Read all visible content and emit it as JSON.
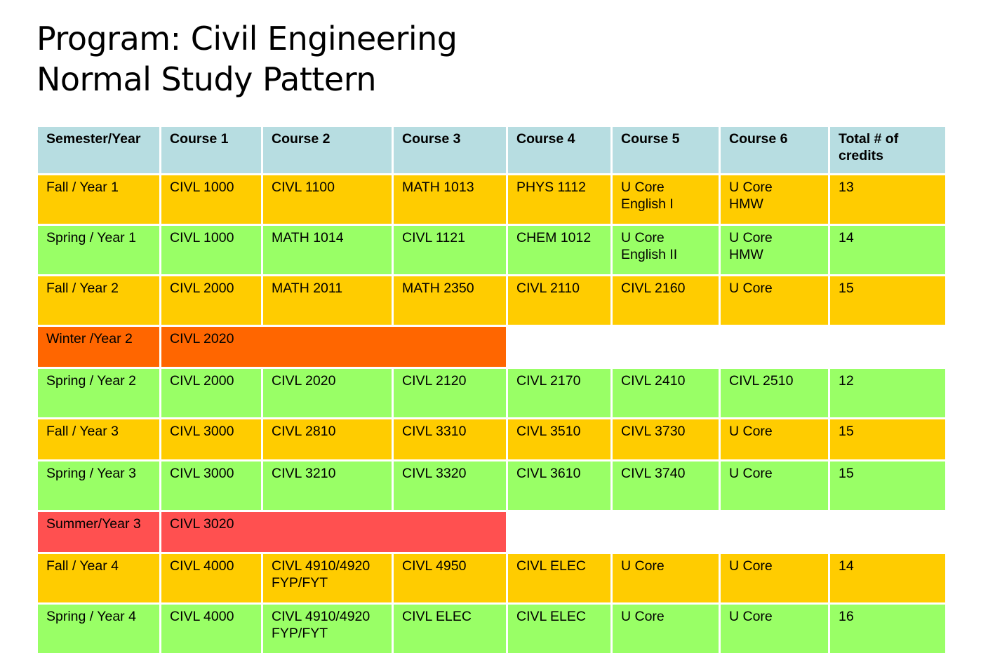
{
  "title": {
    "line1": "Program: Civil Engineering",
    "line2": "Normal Study Pattern"
  },
  "colors": {
    "header": "#b7dde1",
    "fall": "#ffcc00",
    "spring": "#99ff66",
    "winter": "#ff6600",
    "summer": "#ff5050"
  },
  "table": {
    "headers": [
      "Semester/Year",
      "Course 1",
      "Course 2",
      "Course 3",
      "Course 4",
      "Course 5",
      "Course 6",
      "Total # of credits"
    ],
    "rows": [
      {
        "term": "Fall / Year 1",
        "courses": [
          "CIVL 1000",
          "CIVL 1100",
          "MATH 1013",
          "PHYS 1112",
          "U Core English I",
          "U Core HMW"
        ],
        "credits": "13"
      },
      {
        "term": "Spring / Year 1",
        "courses": [
          "CIVL 1000",
          "MATH 1014",
          "CIVL 1121",
          "CHEM 1012",
          "U Core English II",
          "U Core HMW"
        ],
        "credits": "14"
      },
      {
        "term": "Fall / Year 2",
        "courses": [
          "CIVL 2000",
          "MATH 2011",
          "MATH 2350",
          "CIVL 2110",
          "CIVL 2160",
          "U Core"
        ],
        "credits": "15"
      },
      {
        "term": "Winter /Year 2",
        "course": "CIVL 2020"
      },
      {
        "term": "Spring / Year 2",
        "courses": [
          "CIVL 2000",
          "CIVL 2020",
          "CIVL 2120",
          "CIVL 2170",
          "CIVL 2410",
          "CIVL 2510"
        ],
        "credits": "12"
      },
      {
        "term": "Fall / Year 3",
        "courses": [
          "CIVL 3000",
          "CIVL 2810",
          "CIVL 3310",
          "CIVL 3510",
          "CIVL 3730",
          "U Core"
        ],
        "credits": "15"
      },
      {
        "term": "Spring / Year 3",
        "courses": [
          "CIVL 3000",
          "CIVL 3210",
          "CIVL 3320",
          "CIVL 3610",
          "CIVL 3740",
          "U Core"
        ],
        "credits": "15"
      },
      {
        "term": "Summer/Year 3",
        "course": "CIVL 3020"
      },
      {
        "term": "Fall / Year 4",
        "courses": [
          "CIVL 4000",
          "CIVL 4910/4920 FYP/FYT",
          "CIVL 4950",
          "CIVL ELEC",
          "U Core",
          "U Core"
        ],
        "credits": "14"
      },
      {
        "term": "Spring / Year 4",
        "courses": [
          "CIVL 4000",
          "CIVL 4910/4920 FYP/FYT",
          "CIVL ELEC",
          "CIVL ELEC",
          "U Core",
          "U Core"
        ],
        "credits": "16"
      }
    ]
  }
}
